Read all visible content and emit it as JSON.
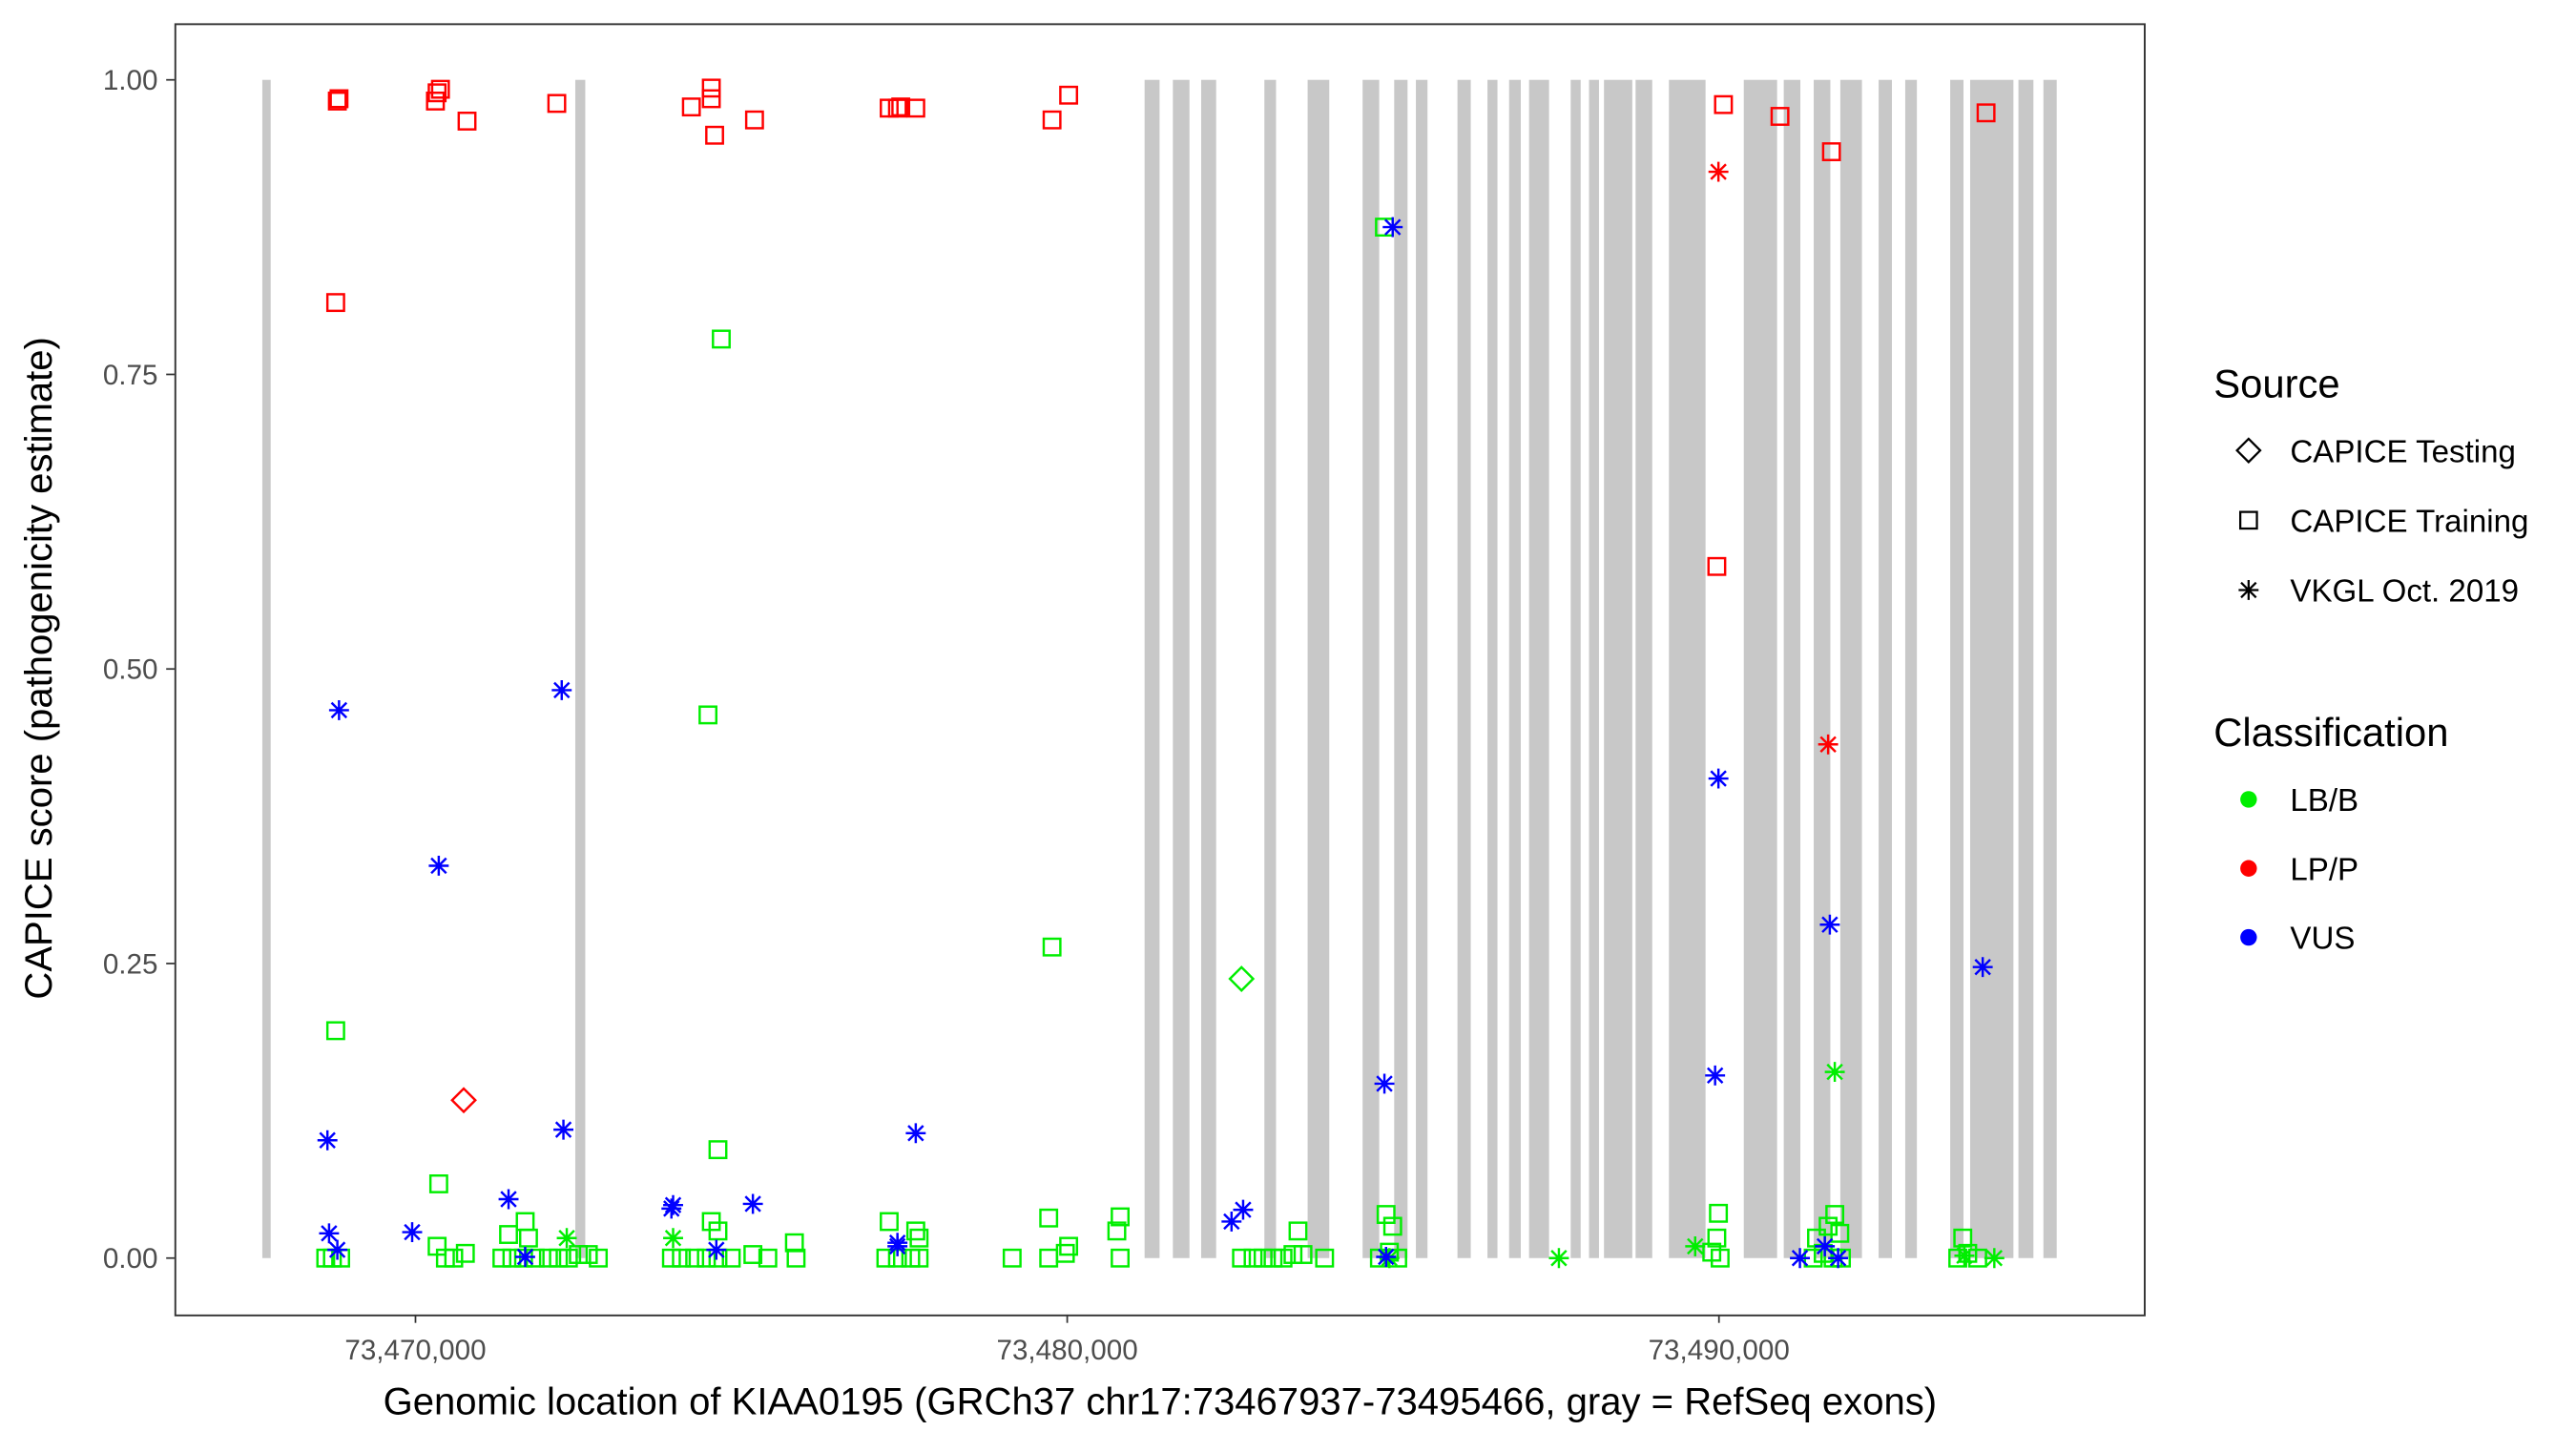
{
  "chart_data": {
    "type": "scatter",
    "title": "",
    "xlabel": "Genomic location of KIAA0195 (GRCh37 chr17:73467937-73495466, gray = RefSeq exons)",
    "ylabel": "CAPICE score (pathogenicity estimate)",
    "xlim": [
      73465700,
      73496000
    ],
    "ylim": [
      -0.046,
      1.047
    ],
    "x_ticks": [
      73470000,
      73480000,
      73490000
    ],
    "x_tick_labels": [
      "73,470,000",
      "73,480,000",
      "73,490,000"
    ],
    "y_ticks": [
      0,
      0.25,
      0.5,
      0.75,
      1.0
    ],
    "y_tick_labels": [
      "0.00",
      "0.25",
      "0.50",
      "0.75",
      "1.00"
    ],
    "grid": false,
    "legend_position": "right",
    "legend": {
      "source_title": "Source",
      "source_items": [
        {
          "key": "testing",
          "label": "CAPICE Testing",
          "shape": "diamond"
        },
        {
          "key": "training",
          "label": "CAPICE Training",
          "shape": "square"
        },
        {
          "key": "vkgl",
          "label": "VKGL Oct. 2019",
          "shape": "asterisk"
        }
      ],
      "class_title": "Classification",
      "class_items": [
        {
          "key": "LB/B",
          "label": "LB/B",
          "color": "#00ee00"
        },
        {
          "key": "LP/P",
          "label": "LP/P",
          "color": "#ff0000"
        },
        {
          "key": "VUS",
          "label": "VUS",
          "color": "#0000ff"
        }
      ]
    },
    "exon_color": "#c8c8c8",
    "exons": [
      [
        73467650,
        73467778
      ],
      [
        73472452,
        73472605
      ],
      [
        73481187,
        73481417
      ],
      [
        73481621,
        73481876
      ],
      [
        73482055,
        73482285
      ],
      [
        73483025,
        73483204
      ],
      [
        73483689,
        73484021
      ],
      [
        73484532,
        73484787
      ],
      [
        73485017,
        73485222
      ],
      [
        73485350,
        73485528
      ],
      [
        73485988,
        73486192
      ],
      [
        73486448,
        73486601
      ],
      [
        73486780,
        73486959
      ],
      [
        73487086,
        73487393
      ],
      [
        73487725,
        73487878
      ],
      [
        73488006,
        73488159
      ],
      [
        73488236,
        73488670
      ],
      [
        73488721,
        73488976
      ],
      [
        73489232,
        73489794
      ],
      [
        73490381,
        73490892
      ],
      [
        73490994,
        73491249
      ],
      [
        73491454,
        73491709
      ],
      [
        73491862,
        73492194
      ],
      [
        73492450,
        73492654
      ],
      [
        73492858,
        73493037
      ],
      [
        73493548,
        73493752
      ],
      [
        73493854,
        73494518
      ],
      [
        73494595,
        73494825
      ],
      [
        73494978,
        73495182
      ]
    ],
    "point_fields": [
      "position",
      "score",
      "source",
      "classification"
    ],
    "points": [
      [
        73468801,
        0.982,
        "training",
        "LP/P"
      ],
      [
        73468827,
        0.984,
        "training",
        "LP/P"
      ],
      [
        73470332,
        0.989,
        "training",
        "LP/P"
      ],
      [
        73470383,
        0.992,
        "training",
        "LP/P"
      ],
      [
        73470306,
        0.982,
        "training",
        "LP/P"
      ],
      [
        73470791,
        0.965,
        "training",
        "LP/P"
      ],
      [
        73472168,
        0.98,
        "training",
        "LP/P"
      ],
      [
        73474233,
        0.977,
        "training",
        "LP/P"
      ],
      [
        73474539,
        0.993,
        "training",
        "LP/P"
      ],
      [
        73474539,
        0.984,
        "training",
        "LP/P"
      ],
      [
        73474590,
        0.953,
        "training",
        "LP/P"
      ],
      [
        73475202,
        0.966,
        "training",
        "LP/P"
      ],
      [
        73477268,
        0.976,
        "training",
        "LP/P"
      ],
      [
        73477395,
        0.976,
        "training",
        "LP/P"
      ],
      [
        73477446,
        0.977,
        "training",
        "LP/P"
      ],
      [
        73477676,
        0.976,
        "training",
        "LP/P"
      ],
      [
        73479767,
        0.966,
        "training",
        "LP/P"
      ],
      [
        73480022,
        0.987,
        "training",
        "LP/P"
      ],
      [
        73490069,
        0.979,
        "training",
        "LP/P"
      ],
      [
        73490936,
        0.969,
        "training",
        "LP/P"
      ],
      [
        73491726,
        0.939,
        "training",
        "LP/P"
      ],
      [
        73494098,
        0.972,
        "training",
        "LP/P"
      ],
      [
        73468776,
        0.811,
        "training",
        "LP/P"
      ],
      [
        73489967,
        0.587,
        "training",
        "LP/P"
      ],
      [
        73489992,
        0.922,
        "vkgl",
        "LP/P"
      ],
      [
        73491675,
        0.436,
        "vkgl",
        "LP/P"
      ],
      [
        73470740,
        0.134,
        "testing",
        "LP/P"
      ],
      [
        73482674,
        0.237,
        "testing",
        "LB/B"
      ],
      [
        73474692,
        0.78,
        "training",
        "LB/B"
      ],
      [
        73474488,
        0.461,
        "training",
        "LB/B"
      ],
      [
        73479767,
        0.264,
        "training",
        "LB/B"
      ],
      [
        73468776,
        0.193,
        "training",
        "LB/B"
      ],
      [
        73474641,
        0.092,
        "training",
        "LB/B"
      ],
      [
        73470357,
        0.063,
        "training",
        "LB/B"
      ],
      [
        73484867,
        0.875,
        "training",
        "LB/B"
      ],
      [
        73479716,
        0.034,
        "training",
        "LB/B"
      ],
      [
        73480812,
        0.035,
        "training",
        "LB/B"
      ],
      [
        73480761,
        0.023,
        "training",
        "LB/B"
      ],
      [
        73480022,
        0.01,
        "training",
        "LB/B"
      ],
      [
        73483541,
        0.023,
        "training",
        "LB/B"
      ],
      [
        73484892,
        0.037,
        "training",
        "LB/B"
      ],
      [
        73484994,
        0.027,
        "training",
        "LB/B"
      ],
      [
        73489992,
        0.038,
        "training",
        "LB/B"
      ],
      [
        73491777,
        0.037,
        "training",
        "LB/B"
      ],
      [
        73491675,
        0.027,
        "training",
        "LB/B"
      ],
      [
        73491854,
        0.021,
        "training",
        "LB/B"
      ],
      [
        73477268,
        0.031,
        "training",
        "LB/B"
      ],
      [
        73477676,
        0.023,
        "training",
        "LB/B"
      ],
      [
        73477727,
        0.017,
        "training",
        "LB/B"
      ],
      [
        73474539,
        0.031,
        "training",
        "LB/B"
      ],
      [
        73474641,
        0.023,
        "training",
        "LB/B"
      ],
      [
        73471683,
        0.031,
        "training",
        "LB/B"
      ],
      [
        73471734,
        0.017,
        "training",
        "LB/B"
      ],
      [
        73471428,
        0.02,
        "training",
        "LB/B"
      ],
      [
        73475814,
        0.013,
        "training",
        "LB/B"
      ],
      [
        73493741,
        0.017,
        "training",
        "LB/B"
      ],
      [
        73491497,
        0.017,
        "training",
        "LB/B"
      ],
      [
        73489967,
        0.017,
        "training",
        "LB/B"
      ],
      [
        73468623,
        0,
        "training",
        "LB/B"
      ],
      [
        73468725,
        0,
        "training",
        "LB/B"
      ],
      [
        73468852,
        0,
        "training",
        "LB/B"
      ],
      [
        73470332,
        0.01,
        "training",
        "LB/B"
      ],
      [
        73470459,
        0,
        "training",
        "LB/B"
      ],
      [
        73470587,
        0,
        "training",
        "LB/B"
      ],
      [
        73470765,
        0.004,
        "training",
        "LB/B"
      ],
      [
        73471326,
        0,
        "training",
        "LB/B"
      ],
      [
        73471479,
        0,
        "training",
        "LB/B"
      ],
      [
        73471658,
        0,
        "training",
        "LB/B"
      ],
      [
        73471836,
        0,
        "training",
        "LB/B"
      ],
      [
        73472040,
        0,
        "training",
        "LB/B"
      ],
      [
        73472193,
        0,
        "training",
        "LB/B"
      ],
      [
        73472346,
        0,
        "training",
        "LB/B"
      ],
      [
        73472499,
        0.003,
        "training",
        "LB/B"
      ],
      [
        73472652,
        0.003,
        "training",
        "LB/B"
      ],
      [
        73472805,
        0,
        "training",
        "LB/B"
      ],
      [
        73473927,
        0,
        "training",
        "LB/B"
      ],
      [
        73474080,
        0,
        "training",
        "LB/B"
      ],
      [
        73474284,
        0,
        "training",
        "LB/B"
      ],
      [
        73474463,
        0,
        "training",
        "LB/B"
      ],
      [
        73474641,
        0,
        "training",
        "LB/B"
      ],
      [
        73474845,
        0,
        "training",
        "LB/B"
      ],
      [
        73475177,
        0.003,
        "training",
        "LB/B"
      ],
      [
        73475406,
        0,
        "training",
        "LB/B"
      ],
      [
        73475840,
        0,
        "training",
        "LB/B"
      ],
      [
        73477217,
        0,
        "training",
        "LB/B"
      ],
      [
        73477395,
        0,
        "training",
        "LB/B"
      ],
      [
        73477599,
        0,
        "training",
        "LB/B"
      ],
      [
        73477727,
        0,
        "training",
        "LB/B"
      ],
      [
        73479155,
        0,
        "training",
        "LB/B"
      ],
      [
        73479716,
        0,
        "training",
        "LB/B"
      ],
      [
        73479971,
        0.004,
        "training",
        "LB/B"
      ],
      [
        73480812,
        0,
        "training",
        "LB/B"
      ],
      [
        73482674,
        0,
        "training",
        "LB/B"
      ],
      [
        73482852,
        0,
        "training",
        "LB/B"
      ],
      [
        73483005,
        0,
        "training",
        "LB/B"
      ],
      [
        73483158,
        0,
        "training",
        "LB/B"
      ],
      [
        73483311,
        0,
        "training",
        "LB/B"
      ],
      [
        73483464,
        0.003,
        "training",
        "LB/B"
      ],
      [
        73483617,
        0.003,
        "training",
        "LB/B"
      ],
      [
        73483949,
        0,
        "training",
        "LB/B"
      ],
      [
        73484790,
        0,
        "training",
        "LB/B"
      ],
      [
        73484943,
        0.005,
        "training",
        "LB/B"
      ],
      [
        73485071,
        0,
        "training",
        "LB/B"
      ],
      [
        73489890,
        0.005,
        "training",
        "LB/B"
      ],
      [
        73490018,
        0,
        "training",
        "LB/B"
      ],
      [
        73491446,
        0,
        "training",
        "LB/B"
      ],
      [
        73491599,
        0.004,
        "training",
        "LB/B"
      ],
      [
        73491752,
        0,
        "training",
        "LB/B"
      ],
      [
        73491879,
        0,
        "training",
        "LB/B"
      ],
      [
        73493664,
        0,
        "training",
        "LB/B"
      ],
      [
        73493817,
        0.004,
        "training",
        "LB/B"
      ],
      [
        73493970,
        0,
        "training",
        "LB/B"
      ],
      [
        73472321,
        0.017,
        "vkgl",
        "LB/B"
      ],
      [
        73473953,
        0.017,
        "vkgl",
        "LB/B"
      ],
      [
        73487544,
        0,
        "vkgl",
        "LB/B"
      ],
      [
        73489635,
        0.01,
        "vkgl",
        "LB/B"
      ],
      [
        73491777,
        0.158,
        "vkgl",
        "LB/B"
      ],
      [
        73494225,
        0,
        "vkgl",
        "LB/B"
      ],
      [
        73484943,
        0,
        "vkgl",
        "LB/B"
      ],
      [
        73493766,
        0.002,
        "vkgl",
        "LB/B"
      ],
      [
        73468827,
        0.465,
        "vkgl",
        "VUS"
      ],
      [
        73470357,
        0.333,
        "vkgl",
        "VUS"
      ],
      [
        73472244,
        0.482,
        "vkgl",
        "VUS"
      ],
      [
        73477676,
        0.106,
        "vkgl",
        "VUS"
      ],
      [
        73472270,
        0.109,
        "vkgl",
        "VUS"
      ],
      [
        73468649,
        0.1,
        "vkgl",
        "VUS"
      ],
      [
        73468674,
        0.021,
        "vkgl",
        "VUS"
      ],
      [
        73469949,
        0.022,
        "vkgl",
        "VUS"
      ],
      [
        73471428,
        0.05,
        "vkgl",
        "VUS"
      ],
      [
        73473953,
        0.045,
        "vkgl",
        "VUS"
      ],
      [
        73473927,
        0.042,
        "vkgl",
        "VUS"
      ],
      [
        73475177,
        0.046,
        "vkgl",
        "VUS"
      ],
      [
        73468801,
        0.007,
        "vkgl",
        "VUS"
      ],
      [
        73471683,
        0.001,
        "vkgl",
        "VUS"
      ],
      [
        73474616,
        0.007,
        "vkgl",
        "VUS"
      ],
      [
        73477395,
        0.013,
        "vkgl",
        "VUS"
      ],
      [
        73477395,
        0.01,
        "vkgl",
        "VUS"
      ],
      [
        73482521,
        0.031,
        "vkgl",
        "VUS"
      ],
      [
        73482699,
        0.041,
        "vkgl",
        "VUS"
      ],
      [
        73484994,
        0.875,
        "vkgl",
        "VUS"
      ],
      [
        73484867,
        0.148,
        "vkgl",
        "VUS"
      ],
      [
        73484892,
        0.001,
        "vkgl",
        "VUS"
      ],
      [
        73489992,
        0.407,
        "vkgl",
        "VUS"
      ],
      [
        73489941,
        0.155,
        "vkgl",
        "VUS"
      ],
      [
        73491701,
        0.283,
        "vkgl",
        "VUS"
      ],
      [
        73494047,
        0.247,
        "vkgl",
        "VUS"
      ],
      [
        73491242,
        0,
        "vkgl",
        "VUS"
      ],
      [
        73491624,
        0.01,
        "vkgl",
        "VUS"
      ],
      [
        73491828,
        0,
        "vkgl",
        "VUS"
      ]
    ]
  }
}
